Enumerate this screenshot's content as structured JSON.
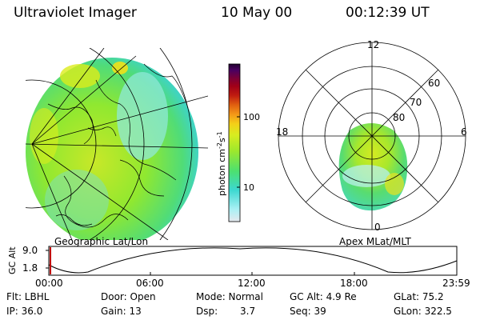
{
  "header": {
    "instrument": "Ultraviolet Imager",
    "date": "10 May 00",
    "time": "00:12:39 UT"
  },
  "colorbar": {
    "label": "photon cm",
    "label_exp1": "-2",
    "label_mid": "s",
    "label_exp2": "-1",
    "ticks": [
      "100",
      "10"
    ],
    "scale": "log",
    "colors_bottom_to_top": [
      "#e6e8ee",
      "#a8f0f4",
      "#3cd8d0",
      "#4ce070",
      "#9ee82c",
      "#d8ec20",
      "#f4d018",
      "#f49818",
      "#e06010",
      "#c01c10",
      "#a00018",
      "#7a0038",
      "#4a0060",
      "#200030"
    ]
  },
  "left_map": {
    "caption": "Geographic Lat/Lon"
  },
  "right_map": {
    "caption": "Apex MLat/MLT",
    "mlt_labels": [
      "12",
      "18",
      "6",
      "0"
    ],
    "mlat_labels": [
      "60",
      "70",
      "80"
    ]
  },
  "altitude_plot": {
    "ylabel": "GC Alt",
    "yticks": [
      "9.0",
      "1.8"
    ],
    "xticks": [
      "00:00",
      "06:00",
      "12:00",
      "18:00",
      "23:59"
    ]
  },
  "status": {
    "filter": "Flt: LBHL",
    "ip": "IP: 36.0",
    "door": "Door: Open",
    "gain": "Gain: 13",
    "mode": "Mode: Normal",
    "dsp_label": "Dsp:",
    "dsp_value": "3.7",
    "gc_alt": "GC Alt: 4.9 Re",
    "seq": "Seq: 39",
    "glat": "GLat: 75.2",
    "glon": "GLon: 322.5"
  }
}
